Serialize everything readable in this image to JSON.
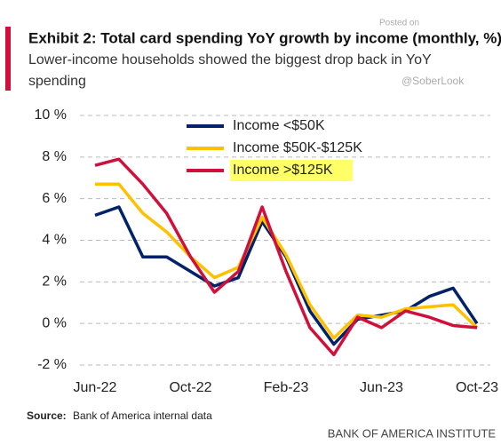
{
  "chart_data": {
    "type": "line",
    "title": "Exhibit 2: Total card spending YoY growth by income (monthly, %)",
    "subtitle": "Lower-income households showed the biggest drop back in YoY spending",
    "watermark": [
      "Posted on",
      "@SoberLook"
    ],
    "source_label": "Source:",
    "source": "Bank of America internal data",
    "brand": "BANK OF AMERICA INSTITUTE",
    "categories": [
      "Jun-22",
      null,
      null,
      null,
      "Oct-22",
      null,
      null,
      null,
      "Feb-23",
      null,
      null,
      null,
      "Jun-23",
      null,
      null,
      null,
      "Oct-23"
    ],
    "series": [
      {
        "name": "Income <$50K",
        "color": "#012169",
        "values": [
          5.2,
          5.6,
          3.2,
          3.2,
          2.5,
          1.8,
          2.2,
          4.9,
          3.2,
          0.6,
          -1.0,
          0.2,
          0.4,
          0.6,
          1.3,
          1.7,
          0.0
        ]
      },
      {
        "name": "Income $50K-$125K",
        "color": "#ffc000",
        "values": [
          6.7,
          6.7,
          5.3,
          4.4,
          3.2,
          2.2,
          2.7,
          5.1,
          3.3,
          0.9,
          -0.7,
          0.4,
          0.3,
          0.7,
          0.8,
          0.9,
          -0.2
        ]
      },
      {
        "name": "Income >$125K",
        "color": "#d0103a",
        "highlight": "#ffff66",
        "values": [
          7.6,
          7.9,
          6.7,
          5.3,
          3.2,
          1.5,
          2.5,
          5.6,
          2.5,
          -0.2,
          -1.5,
          0.3,
          -0.2,
          0.6,
          0.3,
          -0.1,
          -0.2
        ]
      }
    ],
    "ylim": [
      -2,
      10
    ],
    "yticks": [
      {
        "value": 10,
        "label": "10 %"
      },
      {
        "value": 8,
        "label": "8 %"
      },
      {
        "value": 6,
        "label": "6 %"
      },
      {
        "value": 4,
        "label": "4 %"
      },
      {
        "value": 2,
        "label": "2 %"
      },
      {
        "value": 0,
        "label": "0 %"
      },
      {
        "value": -2,
        "label": "-2 %"
      }
    ],
    "grid": true
  }
}
